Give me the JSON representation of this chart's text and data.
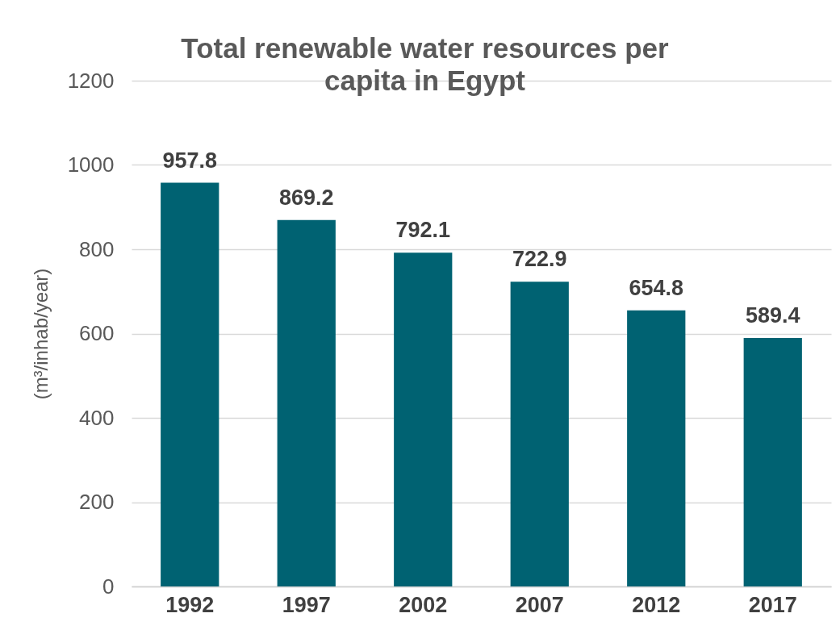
{
  "chart_data": {
    "type": "bar",
    "title": "Total renewable water resources per capita in Egypt",
    "ylabel": "(m³/inhab/year)",
    "categories": [
      "1992",
      "1997",
      "2002",
      "2007",
      "2012",
      "2017"
    ],
    "values": [
      957.8,
      869.2,
      792.1,
      722.9,
      654.8,
      589.4
    ],
    "color": "#006272",
    "ylim": [
      0,
      1200
    ],
    "yticks": [
      0,
      200,
      400,
      600,
      800,
      1000,
      1200
    ],
    "grid": "y",
    "data_labels": true
  }
}
